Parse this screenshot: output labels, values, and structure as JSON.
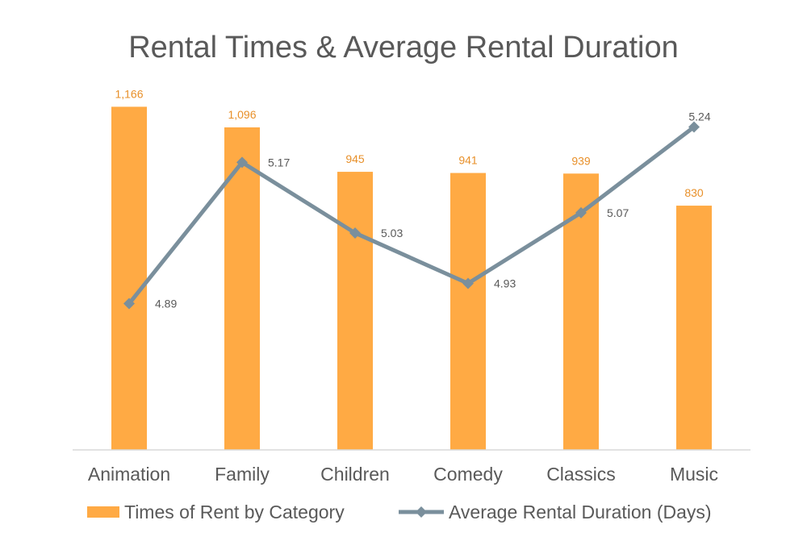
{
  "chart_data": {
    "type": "bar",
    "title": "Rental Times & Average Rental Duration",
    "categories": [
      "Animation",
      "Family",
      "Children",
      "Comedy",
      "Classics",
      "Music"
    ],
    "series": [
      {
        "name": "Times of Rent by Category",
        "type": "bar",
        "values": [
          1166,
          1096,
          945,
          941,
          939,
          830
        ],
        "labels": [
          "1,166",
          "1,096",
          "945",
          "941",
          "939",
          "830"
        ],
        "color": "#FFAA44"
      },
      {
        "name": "Average Rental Duration (Days)",
        "type": "line",
        "values": [
          4.89,
          5.17,
          5.03,
          4.93,
          5.07,
          5.24
        ],
        "labels": [
          "4.89",
          "5.17",
          "5.03",
          "4.93",
          "5.07",
          "5.24"
        ],
        "color": "#7A8F9C",
        "axis": "secondary"
      }
    ],
    "ylim": [
      0,
      1200
    ],
    "y2lim": [
      4.6,
      5.3
    ],
    "grid": false,
    "legend_position": "bottom"
  }
}
